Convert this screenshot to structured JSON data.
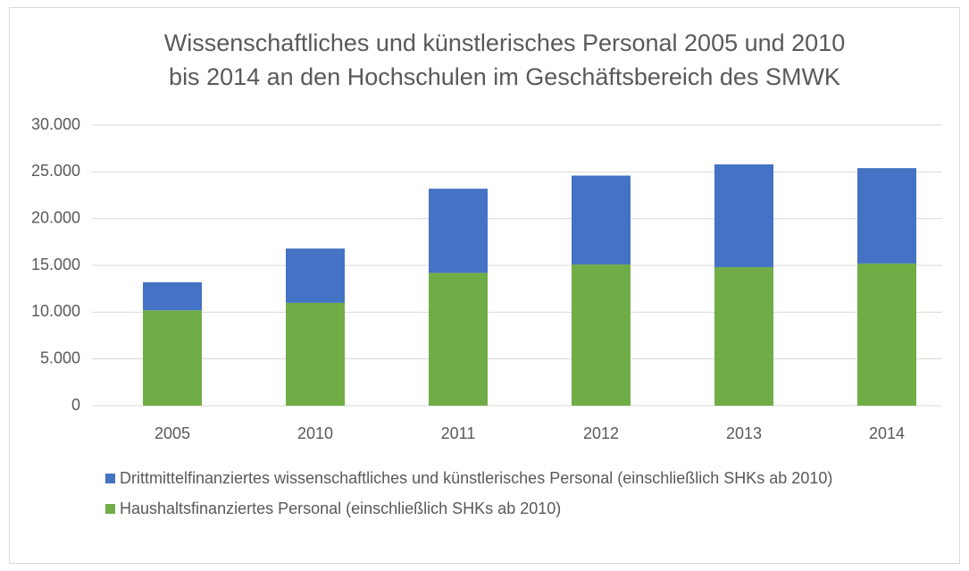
{
  "chart_data": {
    "type": "stacked_bar",
    "title": [
      "Wissenschaftliches und künstlerisches Personal 2005 und 2010",
      "bis 2014 an den Hochschulen im Geschäftsbereich des SMWK"
    ],
    "categories": [
      "2005",
      "2010",
      "2011",
      "2012",
      "2013",
      "2014"
    ],
    "series": [
      {
        "name": "Drittmittelfinanziertes wissenschaftliches und künstlerisches Personal (einschließlich SHKs ab 2010)",
        "color": "#4472c4",
        "values": [
          3000,
          5800,
          9000,
          9500,
          11000,
          10200
        ]
      },
      {
        "name": "Haushaltsfinanziertes Personal (einschließlich SHKs ab 2010)",
        "color": "#70ad47",
        "values": [
          10200,
          11000,
          14200,
          15100,
          14800,
          15200
        ]
      }
    ],
    "ylim": [
      0,
      30000
    ],
    "yticks": [
      0,
      {
        "value": 5000,
        "label": "5.000"
      },
      {
        "value": 10000,
        "label": "10.000"
      },
      {
        "value": 15000,
        "label": "15.000"
      },
      {
        "value": 20000,
        "label": "20.000"
      },
      {
        "value": 25000,
        "label": "25.000"
      },
      {
        "value": 30000,
        "label": "30.000"
      }
    ],
    "grid": true
  }
}
